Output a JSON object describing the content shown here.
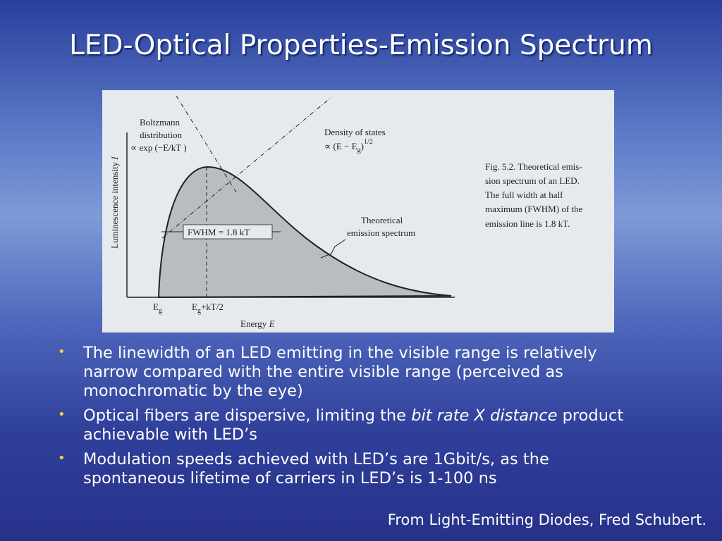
{
  "title": "LED-Optical Properties-Emission Spectrum",
  "figure": {
    "y_axis_label": {
      "text": "Luminescence intensity",
      "symbol": "I"
    },
    "x_axis_label": {
      "text": "Energy",
      "symbol": "E"
    },
    "boltzmann": [
      "Boltzmann",
      "distribution",
      "∝ exp (−E/kT )"
    ],
    "density": {
      "line1": "Density of states",
      "line2": "∝ (E − E",
      "sub": "g",
      "close": ")",
      "exp": "1/2"
    },
    "fwhm": "FWHM = 1.8 kT",
    "theoretical": [
      "Theoretical",
      "emission spectrum"
    ],
    "tick_eg": {
      "main": "E",
      "sub": "g"
    },
    "tick_eg_kt": {
      "main": "E",
      "sub": "g",
      "rest": "+kT/2"
    },
    "caption": [
      "Fig. 5.2. Theoretical emis-",
      "sion spectrum of an LED.",
      "The full width at half",
      "maximum (FWHM) of the",
      "emission line is 1.8 kT."
    ]
  },
  "bullets": [
    [
      "The linewidth of an LED emitting in the visible range is relatively narrow compared with the entire visible range (perceived as monochromatic by the eye)"
    ],
    [
      "Optical fibers are dispersive, limiting the ",
      "bit rate X distance",
      " product achievable with LED’s"
    ],
    [
      "Modulation speeds achieved with LED’s are 1Gbit/s, as the spontaneous lifetime of carriers in LED’s is 1-100 ns"
    ]
  ],
  "source": "From Light-Emitting Diodes, Fred Schubert."
}
